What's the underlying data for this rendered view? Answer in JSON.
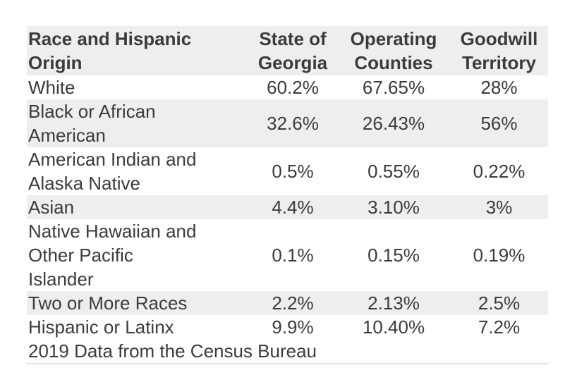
{
  "colors": {
    "text": "#3b3b3b",
    "stripe": "#eeeeee",
    "footer_border": "#e0e0e0",
    "background": "#ffffff"
  },
  "table": {
    "headers": [
      "Race and Hispanic\nOrigin",
      "State of\nGeorgia",
      "Operating\nCounties",
      "Goodwill\nTerritory"
    ],
    "rows": [
      {
        "label": "White",
        "values": [
          "60.2%",
          "67.65%",
          "28%"
        ]
      },
      {
        "label": "Black or African\nAmerican",
        "values": [
          "32.6%",
          "26.43%",
          "56%"
        ]
      },
      {
        "label": "American Indian and\nAlaska Native",
        "values": [
          "0.5%",
          "0.55%",
          "0.22%"
        ]
      },
      {
        "label": "Asian",
        "values": [
          "4.4%",
          "3.10%",
          "3%"
        ]
      },
      {
        "label": "Native Hawaiian and\nOther Pacific\nIslander",
        "values": [
          "0.1%",
          "0.15%",
          "0.19%"
        ]
      },
      {
        "label": "Two or More Races",
        "values": [
          "2.2%",
          "2.13%",
          "2.5%"
        ]
      },
      {
        "label": "Hispanic or Latinx",
        "values": [
          "9.9%",
          "10.40%",
          "7.2%"
        ]
      }
    ],
    "footnote": "2019 Data from the Census Bureau"
  },
  "chart_data": {
    "type": "table",
    "title": "",
    "columns": [
      "Race and Hispanic Origin",
      "State of Georgia",
      "Operating Counties",
      "Goodwill Territory"
    ],
    "categories": [
      "White",
      "Black or African American",
      "American Indian and Alaska Native",
      "Asian",
      "Native Hawaiian and Other Pacific Islander",
      "Two or More Races",
      "Hispanic or Latinx"
    ],
    "series": [
      {
        "name": "State of Georgia",
        "values": [
          60.2,
          32.6,
          0.5,
          4.4,
          0.1,
          2.2,
          9.9
        ]
      },
      {
        "name": "Operating Counties",
        "values": [
          67.65,
          26.43,
          0.55,
          3.1,
          0.15,
          2.13,
          10.4
        ]
      },
      {
        "name": "Goodwill Territory",
        "values": [
          28,
          56,
          0.22,
          3,
          0.19,
          2.5,
          7.2
        ]
      }
    ],
    "unit": "%",
    "note": "2019 Data from the Census Bureau"
  }
}
